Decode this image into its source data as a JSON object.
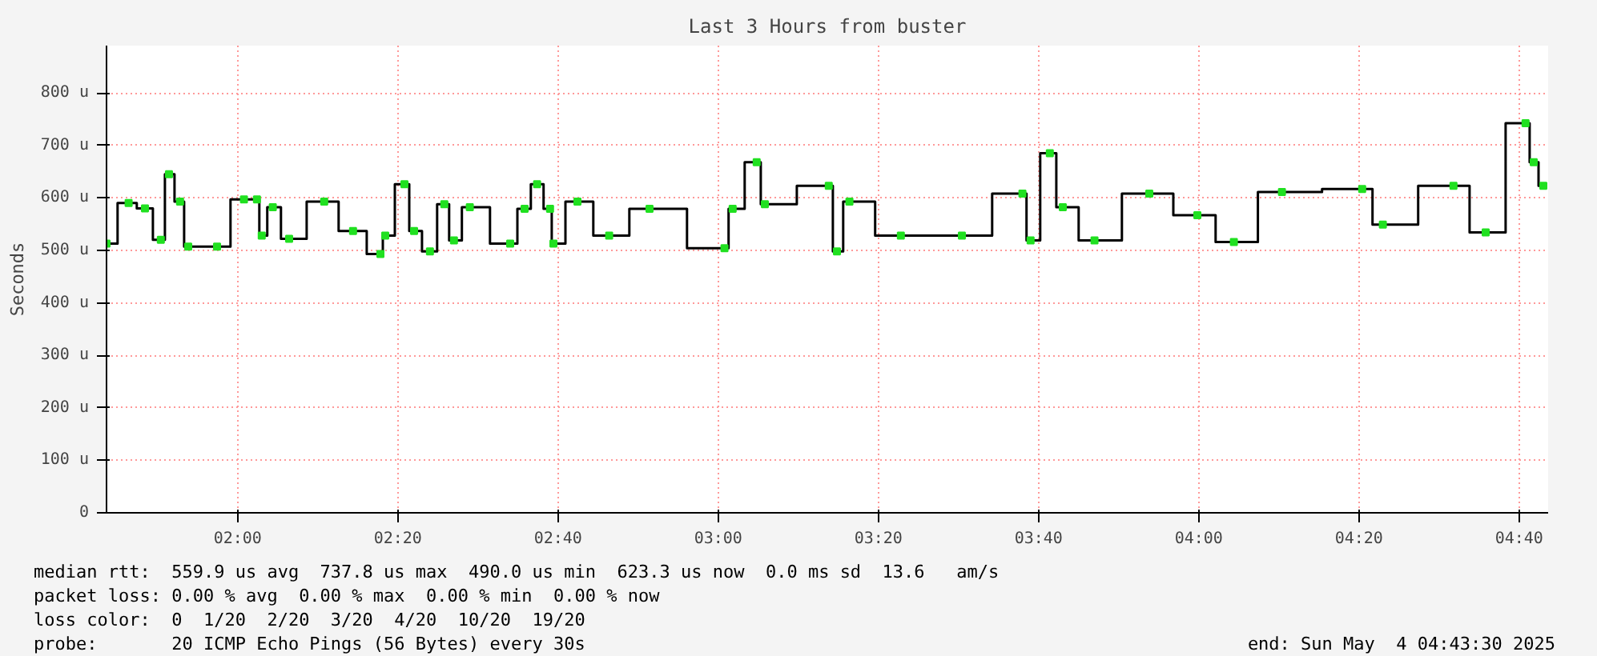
{
  "chart_data": {
    "type": "step",
    "title": "Last 3 Hours from buster",
    "ylabel": "Seconds",
    "x": [
      1.727,
      1.773,
      1.807,
      1.84,
      1.857,
      1.88,
      1.897,
      1.957,
      2.013,
      2.04,
      2.05,
      2.073,
      2.107,
      2.18,
      2.24,
      2.297,
      2.307,
      2.347,
      2.367,
      2.4,
      2.43,
      2.45,
      2.483,
      2.567,
      2.597,
      2.623,
      2.65,
      2.657,
      2.707,
      2.773,
      2.857,
      3.013,
      3.03,
      3.08,
      3.097,
      3.23,
      3.247,
      3.273,
      3.38,
      3.507,
      3.633,
      3.65,
      3.69,
      3.717,
      3.783,
      3.897,
      3.997,
      4.073,
      4.173,
      4.34,
      4.383,
      4.53,
      4.597,
      4.68,
      4.697,
      4.717
    ],
    "series": [
      {
        "color": "#20e020",
        "values": [
          513,
          590,
          580,
          520,
          645,
          593,
          507,
          507,
          597,
          597,
          528,
          582,
          522,
          593,
          537,
          493,
          528,
          626,
          537,
          498,
          588,
          519,
          582,
          513,
          579,
          626,
          579,
          513,
          593,
          528,
          579,
          504,
          579,
          668,
          588,
          623,
          498,
          593,
          528,
          528,
          608,
          519,
          685,
          582,
          519,
          608,
          567,
          516,
          611,
          617,
          549,
          623,
          534,
          742,
          668,
          623
        ]
      }
    ],
    "xlim": [
      1.727,
      4.727
    ],
    "xticks": [
      {
        "value": 2,
        "label": "02:00"
      },
      {
        "value": 2.3333,
        "label": "02:20"
      },
      {
        "value": 2.6667,
        "label": "02:40"
      },
      {
        "value": 3,
        "label": "03:00"
      },
      {
        "value": 3.3333,
        "label": "03:20"
      },
      {
        "value": 3.6667,
        "label": "03:40"
      },
      {
        "value": 4,
        "label": "04:00"
      },
      {
        "value": 4.3333,
        "label": "04:20"
      },
      {
        "value": 4.6667,
        "label": "04:40"
      }
    ],
    "ylim": [
      0,
      890
    ],
    "yticks": [
      {
        "value": 0,
        "label": "0"
      },
      {
        "value": 100,
        "label": "100 u"
      },
      {
        "value": 200,
        "label": "200 u"
      },
      {
        "value": 300,
        "label": "300 u"
      },
      {
        "value": 400,
        "label": "400 u"
      },
      {
        "value": 500,
        "label": "500 u"
      },
      {
        "value": 600,
        "label": "600 u"
      },
      {
        "value": 700,
        "label": "700 u"
      },
      {
        "value": 800,
        "label": "800 u"
      }
    ],
    "grid": true,
    "marker": "square",
    "line_style": "solid",
    "annotations": [
      "median rtt:  559.9 us avg  737.8 us max  490.0 us min  623.3 us now  0.0 ms sd  13.6   am/s",
      "packet loss: 0.00 % avg  0.00 % max  0.00 % min  0.00 % now",
      "loss color:  0  1/20  2/20  3/20  4/20  10/20  19/20",
      "probe:       20 ICMP Echo Pings (56 Bytes) every 30s",
      "end: Sun May  4 04:43:30 2025"
    ]
  }
}
